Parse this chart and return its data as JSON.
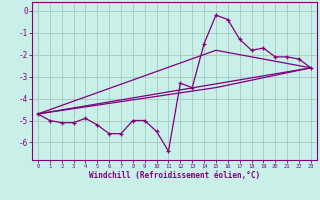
{
  "title": "",
  "xlabel": "Windchill (Refroidissement éolien,°C)",
  "ylabel": "",
  "bg_color": "#c8f0e8",
  "grid_color": "#a8c8c0",
  "line_color": "#800080",
  "spine_color": "#800080",
  "xlim": [
    -0.5,
    23.5
  ],
  "ylim": [
    -6.8,
    0.4
  ],
  "xticks": [
    0,
    1,
    2,
    3,
    4,
    5,
    6,
    7,
    8,
    9,
    10,
    11,
    12,
    13,
    14,
    15,
    16,
    17,
    18,
    19,
    20,
    21,
    22,
    23
  ],
  "yticks": [
    0,
    -1,
    -2,
    -3,
    -4,
    -5,
    -6
  ],
  "hours": [
    0,
    1,
    2,
    3,
    4,
    5,
    6,
    7,
    8,
    9,
    10,
    11,
    12,
    13,
    14,
    15,
    16,
    17,
    18,
    19,
    20,
    21,
    22,
    23
  ],
  "data_y": [
    -4.7,
    -5.0,
    -5.1,
    -5.1,
    -4.9,
    -5.2,
    -5.6,
    -5.6,
    -5.0,
    -5.0,
    -5.5,
    -6.4,
    -3.3,
    -3.5,
    -1.5,
    -0.2,
    -0.4,
    -1.3,
    -1.8,
    -1.7,
    -2.1,
    -2.1,
    -2.2,
    -2.6
  ],
  "line1_x": [
    0,
    23
  ],
  "line1_y": [
    -4.7,
    -2.6
  ],
  "line2_x": [
    0,
    15,
    23
  ],
  "line2_y": [
    -4.7,
    -1.8,
    -2.6
  ],
  "line3_x": [
    0,
    15,
    23
  ],
  "line3_y": [
    -4.7,
    -3.5,
    -2.6
  ]
}
